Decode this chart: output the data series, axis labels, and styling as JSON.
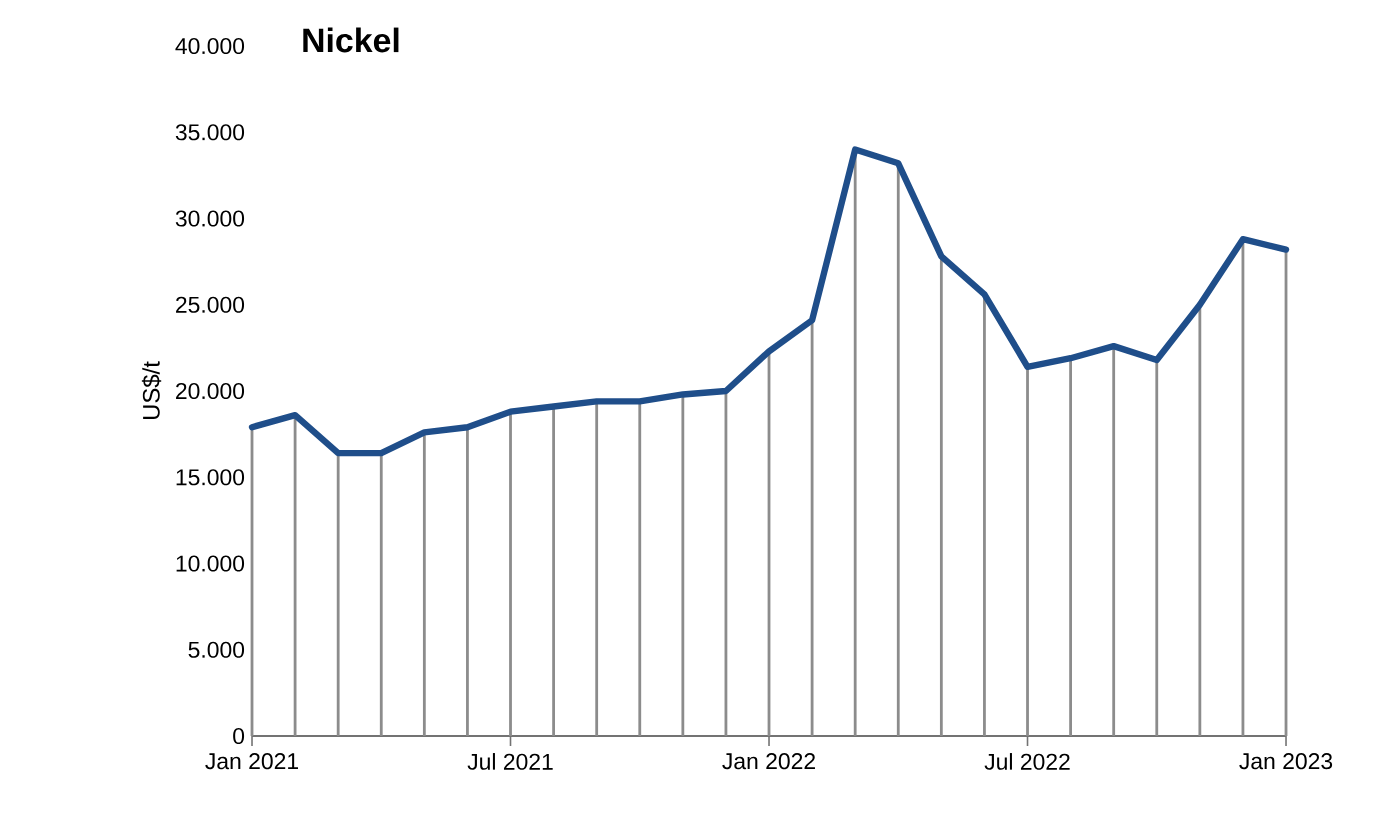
{
  "chart_data": {
    "type": "line",
    "title": "Nickel",
    "ylabel": "US$/t",
    "x": [
      "2021-01",
      "2021-02",
      "2021-03",
      "2021-04",
      "2021-05",
      "2021-06",
      "2021-07",
      "2021-08",
      "2021-09",
      "2021-10",
      "2021-11",
      "2021-12",
      "2022-01",
      "2022-02",
      "2022-03",
      "2022-04",
      "2022-05",
      "2022-06",
      "2022-07",
      "2022-08",
      "2022-09",
      "2022-10",
      "2022-11",
      "2022-12",
      "2023-01"
    ],
    "series": [
      {
        "type": "bar",
        "color": "#8c8c8c",
        "values": [
          17900,
          18600,
          16400,
          16400,
          17600,
          17900,
          18800,
          19100,
          19400,
          19400,
          19800,
          20000,
          22300,
          24100,
          34000,
          33200,
          27800,
          25600,
          21400,
          21900,
          22600,
          21800,
          25000,
          28800,
          28200
        ]
      },
      {
        "color": "#1f4e8a",
        "values": [
          17900,
          18600,
          16400,
          16400,
          17600,
          17900,
          18800,
          19100,
          19400,
          19400,
          19800,
          20000,
          22300,
          24100,
          34000,
          33200,
          27800,
          25600,
          21400,
          21900,
          22600,
          21800,
          25000,
          28800,
          28200
        ]
      }
    ],
    "xlim": [
      "2021-01",
      "2023-01"
    ],
    "xticks": [
      {
        "value": "2021-01",
        "label": "Jan 2021"
      },
      {
        "value": "2021-07",
        "label": "Jul 2021"
      },
      {
        "value": "2022-01",
        "label": "Jan 2022"
      },
      {
        "value": "2022-07",
        "label": "Jul 2022"
      },
      {
        "value": "2023-01",
        "label": "Jan 2023"
      }
    ],
    "ylim": [
      0,
      40000
    ],
    "yticks": [
      0,
      {
        "value": 5000,
        "label": "5.000"
      },
      {
        "value": 10000,
        "label": "10.000"
      },
      {
        "value": 15000,
        "label": "15.000"
      },
      {
        "value": 20000,
        "label": "20.000"
      },
      {
        "value": 25000,
        "label": "25.000"
      },
      {
        "value": 30000,
        "label": "30.000"
      },
      {
        "value": 35000,
        "label": "35.000"
      },
      {
        "value": 40000,
        "label": "40.000"
      }
    ],
    "grid": false,
    "legend": false,
    "marker": "none",
    "line_style": "solid"
  }
}
